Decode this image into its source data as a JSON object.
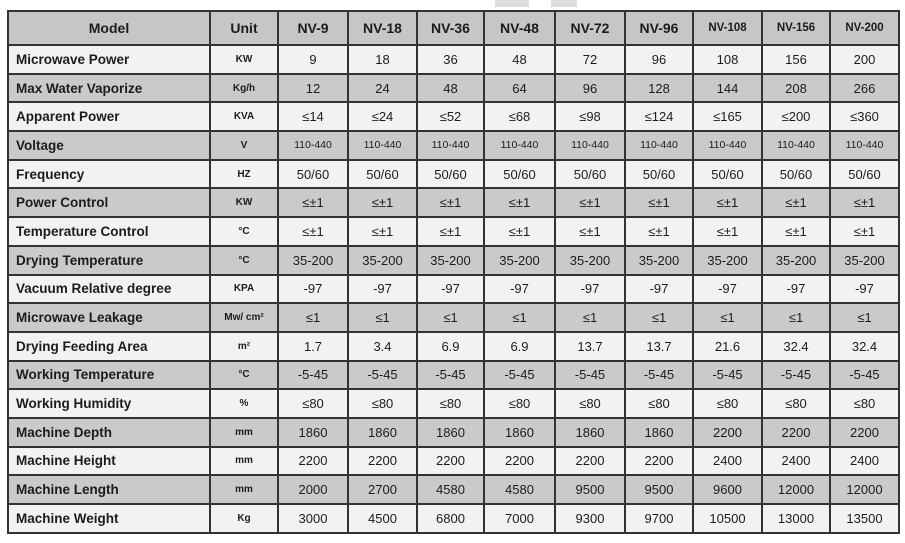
{
  "colors": {
    "header_bg": "#c6c6c6",
    "stripe_gray_bg": "#cacaca",
    "stripe_light_bg": "#f2f2f2",
    "border": "#333333",
    "text": "#1c1c1c"
  },
  "table": {
    "header": [
      "Model",
      "Unit",
      "NV-9",
      "NV-18",
      "NV-36",
      "NV-48",
      "NV-72",
      "NV-96",
      "NV-108",
      "NV-156",
      "NV-200"
    ],
    "rows": [
      {
        "label": "Microwave Power",
        "unit": "KW",
        "small_values": false,
        "values": [
          "9",
          "18",
          "36",
          "48",
          "72",
          "96",
          "108",
          "156",
          "200"
        ]
      },
      {
        "label": "Max Water Vaporize",
        "unit": "Kg/h",
        "small_values": false,
        "values": [
          "12",
          "24",
          "48",
          "64",
          "96",
          "128",
          "144",
          "208",
          "266"
        ]
      },
      {
        "label": "Apparent Power",
        "unit": "KVA",
        "small_values": false,
        "values": [
          "≤14",
          "≤24",
          "≤52",
          "≤68",
          "≤98",
          "≤124",
          "≤165",
          "≤200",
          "≤360"
        ]
      },
      {
        "label": "Voltage",
        "unit": "V",
        "small_values": true,
        "values": [
          "110-440",
          "110-440",
          "110-440",
          "110-440",
          "110-440",
          "110-440",
          "110-440",
          "110-440",
          "110-440"
        ]
      },
      {
        "label": "Frequency",
        "unit": "HZ",
        "small_values": false,
        "values": [
          "50/60",
          "50/60",
          "50/60",
          "50/60",
          "50/60",
          "50/60",
          "50/60",
          "50/60",
          "50/60"
        ]
      },
      {
        "label": "Power Control",
        "unit": "KW",
        "small_values": false,
        "values": [
          "≤±1",
          "≤±1",
          "≤±1",
          "≤±1",
          "≤±1",
          "≤±1",
          "≤±1",
          "≤±1",
          "≤±1"
        ]
      },
      {
        "label": "Temperature Control",
        "unit": "°C",
        "small_values": false,
        "values": [
          "≤±1",
          "≤±1",
          "≤±1",
          "≤±1",
          "≤±1",
          "≤±1",
          "≤±1",
          "≤±1",
          "≤±1"
        ]
      },
      {
        "label": "Drying Temperature",
        "unit": "°C",
        "small_values": false,
        "values": [
          "35-200",
          "35-200",
          "35-200",
          "35-200",
          "35-200",
          "35-200",
          "35-200",
          "35-200",
          "35-200"
        ]
      },
      {
        "label": "Vacuum Relative degree",
        "unit": "KPA",
        "small_values": false,
        "values": [
          "-97",
          "-97",
          "-97",
          "-97",
          "-97",
          "-97",
          "-97",
          "-97",
          "-97"
        ]
      },
      {
        "label": "Microwave Leakage",
        "unit": "Mw/ cm²",
        "small_values": false,
        "values": [
          "≤1",
          "≤1",
          "≤1",
          "≤1",
          "≤1",
          "≤1",
          "≤1",
          "≤1",
          "≤1"
        ]
      },
      {
        "label": "Drying Feeding Area",
        "unit": "m²",
        "small_values": false,
        "values": [
          "1.7",
          "3.4",
          "6.9",
          "6.9",
          "13.7",
          "13.7",
          "21.6",
          "32.4",
          "32.4"
        ]
      },
      {
        "label": "Working Temperature",
        "unit": "°C",
        "small_values": false,
        "values": [
          "-5-45",
          "-5-45",
          "-5-45",
          "-5-45",
          "-5-45",
          "-5-45",
          "-5-45",
          "-5-45",
          "-5-45"
        ]
      },
      {
        "label": "Working Humidity",
        "unit": "%",
        "small_values": false,
        "values": [
          "≤80",
          "≤80",
          "≤80",
          "≤80",
          "≤80",
          "≤80",
          "≤80",
          "≤80",
          "≤80"
        ]
      },
      {
        "label": "Machine Depth",
        "unit": "mm",
        "small_values": false,
        "values": [
          "1860",
          "1860",
          "1860",
          "1860",
          "1860",
          "1860",
          "2200",
          "2200",
          "2200"
        ]
      },
      {
        "label": "Machine Height",
        "unit": "mm",
        "small_values": false,
        "values": [
          "2200",
          "2200",
          "2200",
          "2200",
          "2200",
          "2200",
          "2400",
          "2400",
          "2400"
        ]
      },
      {
        "label": "Machine Length",
        "unit": "mm",
        "small_values": false,
        "values": [
          "2000",
          "2700",
          "4580",
          "4580",
          "9500",
          "9500",
          "9600",
          "12000",
          "12000"
        ]
      },
      {
        "label": "Machine Weight",
        "unit": "Kg",
        "small_values": false,
        "values": [
          "3000",
          "4500",
          "6800",
          "7000",
          "9300",
          "9700",
          "10500",
          "13000",
          "13500"
        ]
      }
    ]
  }
}
